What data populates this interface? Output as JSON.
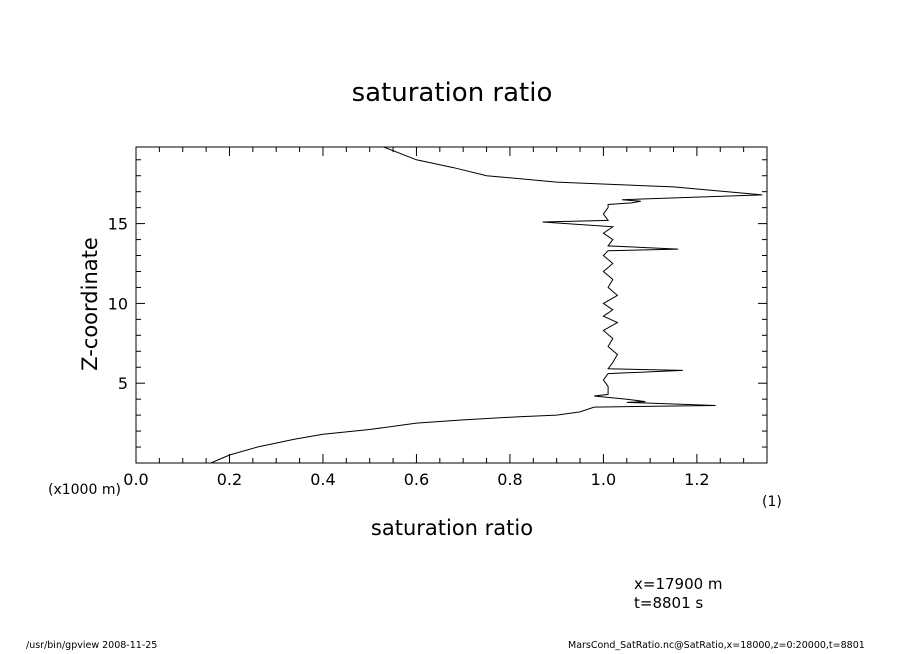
{
  "chart_data": {
    "type": "line",
    "title": "saturation ratio",
    "xlabel": "saturation ratio",
    "ylabel": "Z-coordinate",
    "y_unit_label": "(x1000 m)",
    "x_unit_label": "(1)",
    "xlim": [
      0.0,
      1.35
    ],
    "ylim": [
      0.0,
      19.8
    ],
    "x_ticks": [
      "0.0",
      "0.2",
      "0.4",
      "0.6",
      "0.8",
      "1.0",
      "1.2"
    ],
    "y_ticks": [
      "5",
      "10",
      "15"
    ],
    "grid": false,
    "series": [
      {
        "points": [
          [
            0.16,
            0.0
          ],
          [
            0.2,
            0.5
          ],
          [
            0.26,
            1.0
          ],
          [
            0.34,
            1.5
          ],
          [
            0.4,
            1.8
          ],
          [
            0.5,
            2.1
          ],
          [
            0.6,
            2.5
          ],
          [
            0.7,
            2.7
          ],
          [
            0.82,
            2.9
          ],
          [
            0.9,
            3.0
          ],
          [
            0.95,
            3.2
          ],
          [
            0.98,
            3.5
          ],
          [
            1.24,
            3.6
          ],
          [
            1.05,
            3.8
          ],
          [
            1.09,
            3.85
          ],
          [
            1.05,
            4.0
          ],
          [
            0.98,
            4.2
          ],
          [
            1.01,
            4.3
          ],
          [
            1.01,
            4.8
          ],
          [
            1.0,
            5.2
          ],
          [
            1.01,
            5.6
          ],
          [
            1.17,
            5.8
          ],
          [
            1.01,
            5.9
          ],
          [
            1.02,
            6.3
          ],
          [
            1.03,
            6.8
          ],
          [
            1.01,
            7.3
          ],
          [
            1.02,
            7.8
          ],
          [
            1.0,
            8.3
          ],
          [
            1.03,
            8.8
          ],
          [
            1.0,
            9.2
          ],
          [
            1.02,
            9.6
          ],
          [
            1.0,
            10.0
          ],
          [
            1.03,
            10.5
          ],
          [
            1.01,
            11.0
          ],
          [
            1.02,
            11.5
          ],
          [
            1.0,
            12.0
          ],
          [
            1.02,
            12.5
          ],
          [
            1.0,
            13.0
          ],
          [
            1.01,
            13.3
          ],
          [
            1.16,
            13.4
          ],
          [
            1.01,
            13.6
          ],
          [
            1.02,
            14.0
          ],
          [
            1.0,
            14.4
          ],
          [
            1.02,
            14.8
          ],
          [
            0.87,
            15.1
          ],
          [
            1.01,
            15.2
          ],
          [
            1.0,
            15.6
          ],
          [
            1.01,
            16.0
          ],
          [
            1.01,
            16.2
          ],
          [
            1.06,
            16.3
          ],
          [
            1.08,
            16.4
          ],
          [
            1.04,
            16.5
          ],
          [
            1.34,
            16.8
          ],
          [
            1.15,
            17.3
          ],
          [
            0.9,
            17.6
          ],
          [
            0.75,
            18.0
          ],
          [
            0.68,
            18.5
          ],
          [
            0.6,
            19.0
          ],
          [
            0.53,
            19.8
          ]
        ]
      }
    ]
  },
  "info": {
    "x_position": "x=17900  m",
    "time": "t=8801  s"
  },
  "footer": {
    "left": "/usr/bin/gpview   2008-11-25",
    "right": "MarsCond_SatRatio.nc@SatRatio,x=18000,z=0:20000,t=8801"
  }
}
